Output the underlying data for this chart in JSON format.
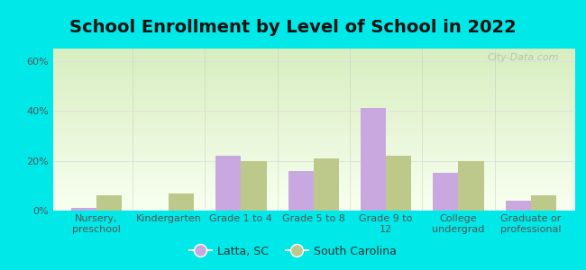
{
  "title": "School Enrollment by Level of School in 2022",
  "categories": [
    "Nursery,\npreschool",
    "Kindergarten",
    "Grade 1 to 4",
    "Grade 5 to 8",
    "Grade 9 to\n12",
    "College\nundergrad",
    "Graduate or\nprofessional"
  ],
  "latta_values": [
    1,
    0,
    22,
    16,
    41,
    15,
    4
  ],
  "sc_values": [
    6,
    7,
    20,
    21,
    22,
    20,
    6
  ],
  "latta_color": "#c9a8e0",
  "sc_color": "#bcc98a",
  "ylim": [
    0,
    65
  ],
  "yticks": [
    0,
    20,
    40,
    60
  ],
  "ytick_labels": [
    "0%",
    "20%",
    "40%",
    "60%"
  ],
  "background_color": "#00e8e8",
  "plot_bg_top": "#d8eec0",
  "plot_bg_bottom": "#f8fff0",
  "watermark": "City-Data.com",
  "legend_latta": "Latta, SC",
  "legend_sc": "South Carolina",
  "bar_width": 0.35,
  "title_fontsize": 14,
  "tick_fontsize": 8,
  "legend_fontsize": 9,
  "axis_label_color": "#555555",
  "grid_color": "#dddddd",
  "title_color": "#111111"
}
